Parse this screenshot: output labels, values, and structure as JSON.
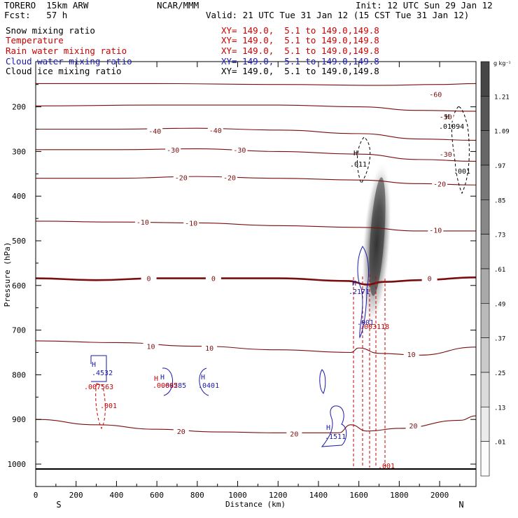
{
  "header": {
    "model": "TORERO  15km ARW",
    "org": "NCAR/MMM",
    "init": "Init: 12 UTC Sun 29 Jan 12",
    "fcst": "Fcst:   57 h",
    "valid": "Valid: 21 UTC Tue 31 Jan 12 (15 CST Tue 31 Jan 12)"
  },
  "legend": [
    {
      "name": "Snow mixing ratio",
      "xy": "",
      "color": "#000000"
    },
    {
      "name": "Temperature",
      "xy": "XY= 149.0,  5.1 to 149.0,149.8",
      "color": "#cc0000"
    },
    {
      "name": "Rain water mixing ratio",
      "xy": "XY= 149.0,  5.1 to 149.0,149.8",
      "color": "#cc0000"
    },
    {
      "name": "Cloud water mixing ratio",
      "xy": "XY= 149.0,  5.1 to 149.0,149.8",
      "color": "#1a1aaa"
    },
    {
      "name": "Cloud ice mixing ratio",
      "xy": "XY= 149.0,  5.1 to 149.0,149.8",
      "color": "#000000"
    }
  ],
  "legend_first_xy": "XY= 149.0,  5.1 to 149.0,149.8",
  "chart_data": {
    "type": "contour",
    "xlabel": "Distance (km)",
    "ylabel": "Pressure (hPa)",
    "xlim": [
      0,
      2180
    ],
    "ylim": [
      1050,
      120
    ],
    "x_ticks": [
      0,
      200,
      400,
      600,
      800,
      1000,
      1200,
      1400,
      1600,
      1800,
      2000
    ],
    "y_ticks": [
      200,
      300,
      400,
      500,
      600,
      700,
      800,
      900,
      1000
    ],
    "left_end_label": "S",
    "right_end_label": "N",
    "colorbar": {
      "unit": "g kg⁻¹",
      "labels": [
        "1.21",
        "1.09",
        ".97",
        ".85",
        ".73",
        ".61",
        ".49",
        ".37",
        ".25",
        ".13",
        ".01"
      ]
    },
    "temperature_contours": [
      {
        "label": "-60",
        "label_points": [
          [
            1980,
            172
          ]
        ],
        "points": [
          [
            0,
            148
          ],
          [
            600,
            148
          ],
          [
            1200,
            150
          ],
          [
            1700,
            152
          ],
          [
            2000,
            150
          ],
          [
            2180,
            148
          ]
        ]
      },
      {
        "label": "-50",
        "label_points": [
          [
            2030,
            222
          ]
        ],
        "points": [
          [
            0,
            198
          ],
          [
            600,
            196
          ],
          [
            1200,
            196
          ],
          [
            1600,
            200
          ],
          [
            1900,
            208
          ],
          [
            2180,
            210
          ]
        ]
      },
      {
        "label": "-40",
        "label_points": [
          [
            590,
            254
          ],
          [
            890,
            252
          ]
        ],
        "points": [
          [
            0,
            250
          ],
          [
            400,
            250
          ],
          [
            800,
            248
          ],
          [
            1200,
            252
          ],
          [
            1600,
            260
          ],
          [
            1900,
            272
          ],
          [
            2180,
            275
          ]
        ]
      },
      {
        "label": "-30",
        "label_points": [
          [
            680,
            296
          ],
          [
            1010,
            296
          ],
          [
            2030,
            306
          ]
        ],
        "points": [
          [
            0,
            296
          ],
          [
            400,
            296
          ],
          [
            800,
            294
          ],
          [
            1200,
            300
          ],
          [
            1600,
            306
          ],
          [
            1900,
            318
          ],
          [
            2180,
            322
          ]
        ]
      },
      {
        "label": "-20",
        "label_points": [
          [
            720,
            358
          ],
          [
            960,
            358
          ],
          [
            2000,
            372
          ]
        ],
        "points": [
          [
            0,
            360
          ],
          [
            400,
            360
          ],
          [
            800,
            356
          ],
          [
            1200,
            360
          ],
          [
            1600,
            364
          ],
          [
            1900,
            372
          ],
          [
            2180,
            375
          ]
        ]
      },
      {
        "label": "-10",
        "label_points": [
          [
            530,
            458
          ],
          [
            770,
            460
          ],
          [
            1980,
            476
          ]
        ],
        "points": [
          [
            0,
            456
          ],
          [
            400,
            458
          ],
          [
            800,
            460
          ],
          [
            1200,
            466
          ],
          [
            1600,
            470
          ],
          [
            1900,
            478
          ],
          [
            2180,
            478
          ]
        ]
      },
      {
        "label": "0",
        "label_points": [
          [
            560,
            584
          ],
          [
            880,
            584
          ],
          [
            1950,
            584
          ]
        ],
        "points": [
          [
            0,
            584
          ],
          [
            300,
            588
          ],
          [
            600,
            584
          ],
          [
            900,
            584
          ],
          [
            1200,
            584
          ],
          [
            1550,
            590
          ],
          [
            1640,
            598
          ],
          [
            1720,
            592
          ],
          [
            1900,
            588
          ],
          [
            2180,
            582
          ]
        ]
      },
      {
        "label": "10",
        "label_points": [
          [
            570,
            736
          ],
          [
            860,
            740
          ],
          [
            1860,
            754
          ]
        ],
        "points": [
          [
            0,
            724
          ],
          [
            400,
            728
          ],
          [
            800,
            736
          ],
          [
            1200,
            744
          ],
          [
            1560,
            750
          ],
          [
            1600,
            740
          ],
          [
            1700,
            752
          ],
          [
            1900,
            756
          ],
          [
            2180,
            738
          ]
        ]
      },
      {
        "label": "20",
        "label_points": [
          [
            720,
            926
          ],
          [
            1280,
            932
          ],
          [
            1870,
            914
          ]
        ],
        "points": [
          [
            0,
            900
          ],
          [
            300,
            912
          ],
          [
            600,
            922
          ],
          [
            900,
            928
          ],
          [
            1200,
            930
          ],
          [
            1500,
            930
          ],
          [
            1560,
            912
          ],
          [
            1640,
            926
          ],
          [
            1800,
            920
          ],
          [
            2100,
            902
          ],
          [
            2180,
            892
          ]
        ]
      }
    ],
    "rain_water_labels": [
      ".007563",
      ".001",
      ".00685",
      ".003118",
      ".001"
    ],
    "cloud_water_labels": [
      ".4532",
      ".00285",
      ".0401",
      ".2171",
      ".001",
      ".1511"
    ],
    "cloud_ice_labels": [
      ".011",
      ".01094",
      ".001"
    ],
    "high_markers": [
      "H",
      "H",
      "H",
      "H",
      "H",
      "H",
      "H",
      "H"
    ]
  }
}
